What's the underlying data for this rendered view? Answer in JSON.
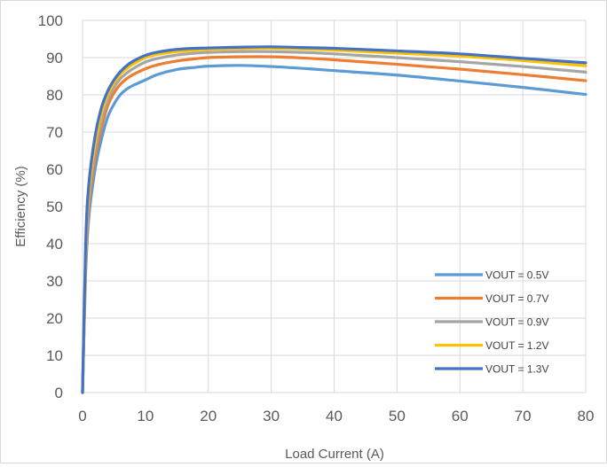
{
  "chart_data": {
    "type": "line",
    "title": "",
    "xlabel": "Load Current (A)",
    "ylabel": "Efficiency (%)",
    "xlim": [
      0,
      80
    ],
    "ylim": [
      0,
      100
    ],
    "xticks": [
      0,
      10,
      20,
      30,
      40,
      50,
      60,
      70,
      80
    ],
    "yticks": [
      0,
      10,
      20,
      30,
      40,
      50,
      60,
      70,
      80,
      90,
      100
    ],
    "x_tick_labels": [
      "0",
      "10",
      "20",
      "30",
      "40",
      "50",
      "60",
      "70",
      "80"
    ],
    "y_tick_labels": [
      "0",
      "10",
      "20",
      "30",
      "40",
      "50",
      "60",
      "70",
      "80",
      "90",
      "100"
    ],
    "grid": "vertical and horizontal major gridlines",
    "legend_position": "bottom-right",
    "x": [
      0,
      0.5,
      1,
      2,
      3,
      4,
      5,
      6,
      7,
      8,
      10,
      12,
      15,
      18,
      20,
      25,
      30,
      35,
      40,
      50,
      60,
      70,
      80
    ],
    "series": [
      {
        "name": "VOUT = 0.5V",
        "color": "#5b9bd5",
        "values": [
          0,
          32,
          47,
          60,
          68,
          74,
          77.5,
          80,
          81.5,
          82.5,
          84,
          85.5,
          86.8,
          87.4,
          87.7,
          87.9,
          87.6,
          87.1,
          86.5,
          85.3,
          83.7,
          82.0,
          80.1
        ]
      },
      {
        "name": "VOUT = 0.7V",
        "color": "#ed7d31",
        "values": [
          0,
          34,
          50,
          63,
          71,
          77,
          80.5,
          82.8,
          84.3,
          85.4,
          87,
          88.1,
          89.1,
          89.7,
          90.0,
          90.2,
          90.2,
          89.9,
          89.4,
          88.2,
          86.9,
          85.4,
          83.8
        ]
      },
      {
        "name": "VOUT = 0.9V",
        "color": "#a5a5a5",
        "values": [
          0,
          36,
          52,
          65,
          73,
          78.5,
          82,
          84.3,
          85.8,
          87,
          88.8,
          89.8,
          90.7,
          91.2,
          91.4,
          91.6,
          91.6,
          91.4,
          91.0,
          90.0,
          88.9,
          87.6,
          86.1
        ]
      },
      {
        "name": "VOUT = 1.2V",
        "color": "#ffc000",
        "values": [
          0,
          38,
          54,
          67,
          75,
          80,
          83.2,
          85.5,
          87,
          88.2,
          90,
          90.9,
          91.6,
          92.0,
          92.2,
          92.4,
          92.5,
          92.3,
          92.0,
          91.2,
          90.4,
          89.2,
          87.8
        ]
      },
      {
        "name": "VOUT = 1.3V",
        "color": "#4472c4",
        "values": [
          0,
          40,
          56,
          69,
          76.5,
          81,
          84,
          86.2,
          87.8,
          89,
          90.6,
          91.5,
          92.2,
          92.5,
          92.6,
          92.8,
          92.9,
          92.7,
          92.5,
          91.8,
          91.0,
          89.8,
          88.6
        ]
      }
    ]
  }
}
